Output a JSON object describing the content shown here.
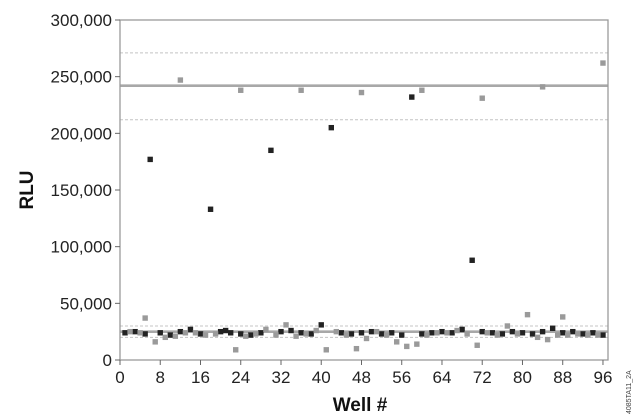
{
  "chart_data": {
    "type": "scatter",
    "title": "",
    "xlabel": "Well #",
    "ylabel": "RLU",
    "xlim": [
      0,
      97
    ],
    "ylim": [
      0,
      300000
    ],
    "x_ticks": [
      0,
      8,
      16,
      24,
      32,
      40,
      48,
      56,
      64,
      72,
      80,
      88,
      96
    ],
    "y_ticks": [
      0,
      50000,
      100000,
      150000,
      200000,
      250000,
      300000
    ],
    "y_tick_labels": [
      "0",
      "50,000",
      "100,000",
      "150,000",
      "200,000",
      "250,000",
      "300,000"
    ],
    "grid": false,
    "reference_lines": [
      {
        "y": 242000,
        "style": "solid"
      },
      {
        "y": 271000,
        "style": "dashed"
      },
      {
        "y": 212000,
        "style": "dashed"
      },
      {
        "y": 25000,
        "style": "solid"
      },
      {
        "y": 30000,
        "style": "dashed"
      },
      {
        "y": 20000,
        "style": "dashed"
      }
    ],
    "series": [
      {
        "color": "#222222",
        "points": [
          [
            1,
            24000
          ],
          [
            3,
            25000
          ],
          [
            5,
            23000
          ],
          [
            6,
            177000
          ],
          [
            8,
            24000
          ],
          [
            10,
            22000
          ],
          [
            12,
            25000
          ],
          [
            14,
            27000
          ],
          [
            16,
            23000
          ],
          [
            18,
            133000
          ],
          [
            20,
            25000
          ],
          [
            21,
            26000
          ],
          [
            22,
            24000
          ],
          [
            24,
            23000
          ],
          [
            26,
            22000
          ],
          [
            28,
            24000
          ],
          [
            30,
            185000
          ],
          [
            32,
            25000
          ],
          [
            34,
            26000
          ],
          [
            36,
            24000
          ],
          [
            38,
            23000
          ],
          [
            40,
            31000
          ],
          [
            42,
            205000
          ],
          [
            44,
            24000
          ],
          [
            46,
            23000
          ],
          [
            48,
            24000
          ],
          [
            50,
            25000
          ],
          [
            52,
            23000
          ],
          [
            54,
            24000
          ],
          [
            56,
            22000
          ],
          [
            58,
            232000
          ],
          [
            60,
            23000
          ],
          [
            62,
            24000
          ],
          [
            64,
            25000
          ],
          [
            66,
            24000
          ],
          [
            68,
            27000
          ],
          [
            70,
            88000
          ],
          [
            72,
            25000
          ],
          [
            74,
            24000
          ],
          [
            76,
            23000
          ],
          [
            78,
            25000
          ],
          [
            80,
            24000
          ],
          [
            82,
            23000
          ],
          [
            84,
            25000
          ],
          [
            86,
            28000
          ],
          [
            88,
            24000
          ],
          [
            90,
            25000
          ],
          [
            92,
            23000
          ],
          [
            94,
            24000
          ],
          [
            96,
            22000
          ]
        ]
      },
      {
        "color": "#9a9a9a",
        "points": [
          [
            2,
            25000
          ],
          [
            4,
            24000
          ],
          [
            5,
            37000
          ],
          [
            7,
            16000
          ],
          [
            9,
            20000
          ],
          [
            11,
            21000
          ],
          [
            12,
            247000
          ],
          [
            13,
            24000
          ],
          [
            15,
            24000
          ],
          [
            17,
            22000
          ],
          [
            19,
            23000
          ],
          [
            23,
            9000
          ],
          [
            24,
            238000
          ],
          [
            25,
            21000
          ],
          [
            27,
            23000
          ],
          [
            29,
            27000
          ],
          [
            31,
            22000
          ],
          [
            33,
            31000
          ],
          [
            35,
            21000
          ],
          [
            36,
            238000
          ],
          [
            37,
            23000
          ],
          [
            39,
            26000
          ],
          [
            41,
            9000
          ],
          [
            43,
            25000
          ],
          [
            45,
            22000
          ],
          [
            47,
            10000
          ],
          [
            48,
            236000
          ],
          [
            49,
            19000
          ],
          [
            51,
            25000
          ],
          [
            53,
            22000
          ],
          [
            55,
            16000
          ],
          [
            57,
            12000
          ],
          [
            59,
            14000
          ],
          [
            60,
            238000
          ],
          [
            61,
            22000
          ],
          [
            63,
            24000
          ],
          [
            65,
            24000
          ],
          [
            67,
            26000
          ],
          [
            69,
            23000
          ],
          [
            71,
            13000
          ],
          [
            72,
            231000
          ],
          [
            73,
            24000
          ],
          [
            75,
            22000
          ],
          [
            77,
            30000
          ],
          [
            79,
            23000
          ],
          [
            81,
            40000
          ],
          [
            83,
            20000
          ],
          [
            84,
            241000
          ],
          [
            85,
            18000
          ],
          [
            87,
            22000
          ],
          [
            88,
            38000
          ],
          [
            89,
            22000
          ],
          [
            91,
            23000
          ],
          [
            93,
            22000
          ],
          [
            95,
            22000
          ],
          [
            96,
            262000
          ]
        ]
      }
    ]
  },
  "side_code": "4085TA11_2A"
}
